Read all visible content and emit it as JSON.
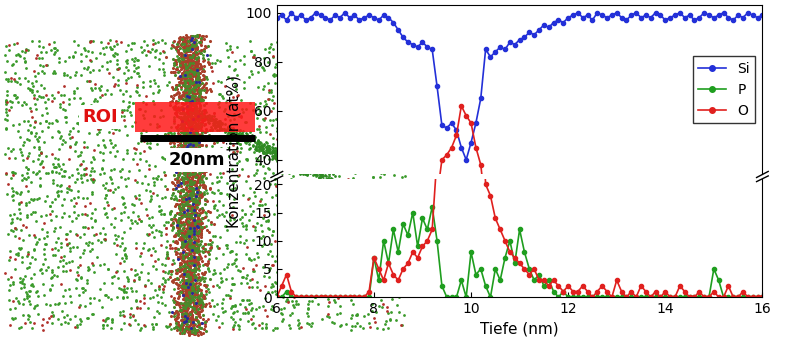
{
  "chart_data": {
    "type": "line",
    "xlabel": "Tiefe (nm)",
    "ylabel": "Konzentration (at%)",
    "xlim": [
      6,
      16
    ],
    "xticks": [
      6,
      8,
      10,
      12,
      14,
      16
    ],
    "ylim": [
      0,
      103
    ],
    "yticks": [
      0,
      5,
      10,
      15,
      20,
      40,
      60,
      80,
      100
    ],
    "y_break": [
      21,
      34
    ],
    "legend": "center right",
    "x": [
      6.0,
      6.1,
      6.2,
      6.3,
      6.4,
      6.5,
      6.6,
      6.7,
      6.8,
      6.9,
      7.0,
      7.1,
      7.2,
      7.3,
      7.4,
      7.5,
      7.6,
      7.7,
      7.8,
      7.9,
      8.0,
      8.1,
      8.2,
      8.3,
      8.4,
      8.5,
      8.6,
      8.7,
      8.8,
      8.9,
      9.0,
      9.1,
      9.2,
      9.3,
      9.4,
      9.5,
      9.6,
      9.7,
      9.8,
      9.9,
      10.0,
      10.1,
      10.2,
      10.3,
      10.4,
      10.5,
      10.6,
      10.7,
      10.8,
      10.9,
      11.0,
      11.1,
      11.2,
      11.3,
      11.4,
      11.5,
      11.6,
      11.7,
      11.8,
      11.9,
      12.0,
      12.1,
      12.2,
      12.3,
      12.4,
      12.5,
      12.6,
      12.7,
      12.8,
      12.9,
      13.0,
      13.1,
      13.2,
      13.3,
      13.4,
      13.5,
      13.6,
      13.7,
      13.8,
      13.9,
      14.0,
      14.1,
      14.2,
      14.3,
      14.4,
      14.5,
      14.6,
      14.7,
      14.8,
      14.9,
      15.0,
      15.1,
      15.2,
      15.3,
      15.4,
      15.5,
      15.6,
      15.7,
      15.8,
      15.9,
      16.0
    ],
    "series": [
      {
        "name": "Si",
        "color": "#2330d8",
        "marker": "o",
        "line_style": "solid",
        "values": [
          98,
          99,
          97,
          100,
          98,
          99,
          97,
          98,
          100,
          99,
          98,
          97,
          99,
          98,
          100,
          98,
          99,
          97,
          98,
          99,
          98,
          97,
          99,
          98,
          96,
          93,
          90,
          88,
          87,
          86,
          88,
          86,
          85,
          70,
          54,
          53,
          55,
          52,
          45,
          40,
          47,
          55,
          65,
          85,
          82,
          84,
          86,
          85,
          88,
          87,
          89,
          90,
          92,
          91,
          93,
          95,
          94,
          96,
          97,
          96,
          98,
          99,
          100,
          98,
          99,
          97,
          100,
          99,
          98,
          99,
          100,
          98,
          97,
          99,
          100,
          98,
          99,
          98,
          100,
          99,
          97,
          98,
          99,
          100,
          98,
          99,
          97,
          98,
          100,
          99,
          98,
          99,
          100,
          98,
          97,
          99,
          98,
          100,
          99,
          98,
          99
        ]
      },
      {
        "name": "P",
        "color": "#1f9e1f",
        "marker": "o",
        "line_style": "solid",
        "values": [
          0,
          0,
          1,
          0,
          0,
          0,
          0,
          0,
          0,
          0,
          0,
          0,
          0,
          0,
          0,
          0,
          0,
          0,
          0,
          0,
          7,
          3,
          10,
          6,
          12,
          8,
          13,
          11,
          15,
          9,
          14,
          12,
          16,
          10,
          2,
          0,
          0,
          0,
          3,
          0,
          8,
          4,
          5,
          2,
          0,
          5,
          3,
          7,
          10,
          6,
          12,
          8,
          5,
          3,
          4,
          2,
          3,
          1,
          0,
          1,
          0,
          0,
          0,
          0,
          0,
          0,
          0,
          0,
          0,
          0,
          0,
          0,
          0,
          0,
          0,
          0,
          0,
          0,
          0,
          0,
          0,
          0,
          0,
          0,
          0,
          0,
          0,
          0,
          0,
          0,
          5,
          3,
          0,
          0,
          0,
          0,
          0,
          0,
          0,
          0,
          0
        ]
      },
      {
        "name": "O",
        "color": "#e0201e",
        "marker": "o",
        "line_style": "solid",
        "values": [
          0,
          2,
          4,
          1,
          0,
          0,
          0,
          0,
          0,
          0,
          0,
          0,
          0,
          0,
          0,
          0,
          0,
          0,
          0,
          1,
          7,
          5,
          3,
          6,
          4,
          3,
          5,
          6,
          8,
          7,
          9,
          10,
          12,
          25,
          40,
          42,
          45,
          50,
          62,
          58,
          55,
          45,
          38,
          20,
          18,
          14,
          12,
          10,
          8,
          7,
          6,
          5,
          4,
          5,
          3,
          3,
          2,
          3,
          2,
          1,
          2,
          1,
          1,
          2,
          1,
          0,
          1,
          2,
          1,
          0,
          3,
          1,
          0,
          1,
          0,
          2,
          1,
          0,
          1,
          0,
          1,
          0,
          0,
          2,
          1,
          0,
          0,
          1,
          0,
          0,
          1,
          0,
          0,
          2,
          0,
          0,
          1,
          0,
          0,
          0,
          0
        ]
      }
    ]
  },
  "reconstruction": {
    "roi_label": "ROI",
    "scale_bar_label": "20nm"
  }
}
